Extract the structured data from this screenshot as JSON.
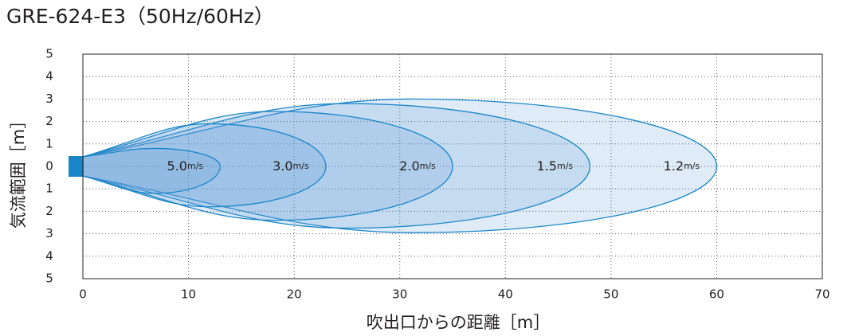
{
  "chart_data": {
    "type": "airflow",
    "title": "GRE-624-E3（50Hz/60Hz）",
    "x_label": "吹出口からの距離［m］",
    "y_label": "気流範囲［m］",
    "xlim": [
      0,
      70
    ],
    "xticks": [
      0,
      10,
      20,
      30,
      40,
      50,
      60,
      70
    ],
    "ylim": [
      -5,
      5
    ],
    "yticks": [
      5,
      4,
      3,
      2,
      1,
      0,
      {
        "value": -1,
        "label": "1"
      },
      {
        "value": -2,
        "label": "2"
      },
      {
        "value": -3,
        "label": "3"
      },
      {
        "value": -4,
        "label": "4"
      },
      {
        "value": -5,
        "label": "5"
      }
    ],
    "grid": true,
    "color": "#1a86c8",
    "series": [
      {
        "name": "1.2",
        "unit": "m/s",
        "reach": 60,
        "upper": 3.0,
        "lower": -2.95
      },
      {
        "name": "1.5",
        "unit": "m/s",
        "reach": 48,
        "upper": 2.8,
        "lower": -2.75
      },
      {
        "name": "2.0",
        "unit": "m/s",
        "reach": 35,
        "upper": 2.45,
        "lower": -2.4
      },
      {
        "name": "3.0",
        "unit": "m/s",
        "reach": 23,
        "upper": 1.9,
        "lower": -1.8
      },
      {
        "name": "5.0",
        "unit": "m/s",
        "reach": 13,
        "upper": 0.8,
        "lower": -1.2
      }
    ]
  }
}
